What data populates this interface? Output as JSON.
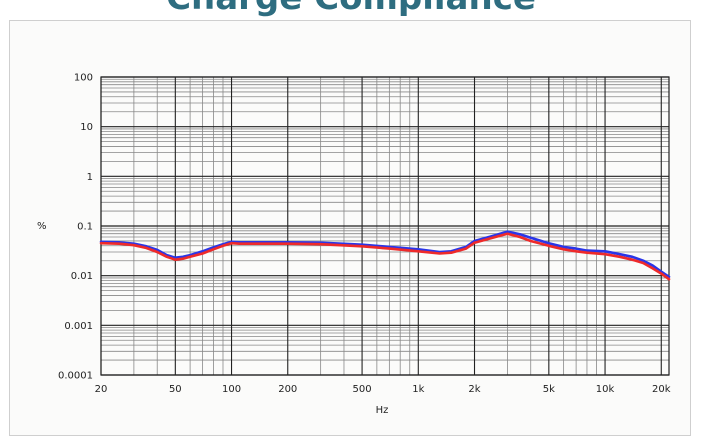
{
  "page": {
    "title": "Charge Compliance"
  },
  "chart_data": {
    "type": "line",
    "title": "Charge Compliance",
    "xlabel": "Hz",
    "ylabel": "%",
    "x_scale": "log",
    "y_scale": "log",
    "xlim": [
      20,
      22000
    ],
    "ylim": [
      0.0001,
      100
    ],
    "grid": true,
    "x_ticks": [
      {
        "value": 20,
        "label": "20"
      },
      {
        "value": 50,
        "label": "50"
      },
      {
        "value": 100,
        "label": "100"
      },
      {
        "value": 200,
        "label": "200"
      },
      {
        "value": 500,
        "label": "500"
      },
      {
        "value": 1000,
        "label": "1k"
      },
      {
        "value": 2000,
        "label": "2k"
      },
      {
        "value": 5000,
        "label": "5k"
      },
      {
        "value": 10000,
        "label": "10k"
      },
      {
        "value": 20000,
        "label": "20k"
      }
    ],
    "y_ticks": [
      {
        "value": 100,
        "label": "100"
      },
      {
        "value": 10,
        "label": "10"
      },
      {
        "value": 1,
        "label": "1"
      },
      {
        "value": 0.1,
        "label": "0.1"
      },
      {
        "value": 0.01,
        "label": "0.01"
      },
      {
        "value": 0.001,
        "label": "0.001"
      },
      {
        "value": 0.0001,
        "label": "0.0001"
      }
    ],
    "colors": {
      "series_1": "#2a35e8",
      "series_2": "#ee2a2a",
      "grid_major": "#222222",
      "grid_minor": "#888888"
    },
    "series": [
      {
        "x": [
          20,
          25,
          30,
          35,
          40,
          45,
          50,
          55,
          60,
          70,
          80,
          90,
          100,
          110,
          150,
          200,
          300,
          500,
          700,
          1000,
          1300,
          1500,
          1800,
          2000,
          2500,
          3000,
          3500,
          4000,
          5000,
          6000,
          7000,
          8000,
          10000,
          12000,
          14000,
          16000,
          18000,
          20000,
          22000
        ],
        "y": [
          0.048,
          0.047,
          0.044,
          0.039,
          0.033,
          0.026,
          0.023,
          0.024,
          0.026,
          0.031,
          0.037,
          0.043,
          0.048,
          0.047,
          0.047,
          0.047,
          0.046,
          0.042,
          0.038,
          0.034,
          0.03,
          0.031,
          0.038,
          0.05,
          0.063,
          0.077,
          0.068,
          0.058,
          0.045,
          0.038,
          0.035,
          0.032,
          0.031,
          0.027,
          0.024,
          0.02,
          0.016,
          0.012,
          0.0095
        ]
      },
      {
        "x": [
          20,
          25,
          30,
          35,
          40,
          45,
          50,
          55,
          60,
          70,
          80,
          90,
          100,
          110,
          150,
          200,
          300,
          500,
          700,
          1000,
          1300,
          1500,
          1800,
          2000,
          2500,
          3000,
          3500,
          4000,
          5000,
          6000,
          7000,
          8000,
          10000,
          12000,
          14000,
          16000,
          18000,
          20000,
          22000
        ],
        "y": [
          0.045,
          0.044,
          0.041,
          0.036,
          0.03,
          0.024,
          0.021,
          0.022,
          0.024,
          0.028,
          0.034,
          0.04,
          0.045,
          0.044,
          0.044,
          0.044,
          0.043,
          0.039,
          0.035,
          0.031,
          0.028,
          0.029,
          0.035,
          0.046,
          0.058,
          0.07,
          0.06,
          0.05,
          0.04,
          0.034,
          0.031,
          0.029,
          0.027,
          0.024,
          0.021,
          0.018,
          0.014,
          0.011,
          0.0085
        ]
      }
    ]
  }
}
